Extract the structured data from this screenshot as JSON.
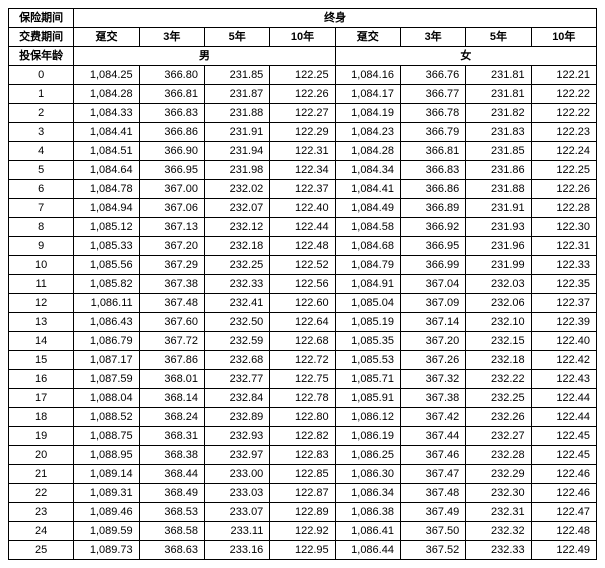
{
  "header": {
    "insurance_period_label": "保险期间",
    "lifetime_label": "终身",
    "payment_period_label": "交费期间",
    "payment_options": [
      "趸交",
      "3年",
      "5年",
      "10年"
    ],
    "insured_age_label": "投保年龄",
    "gender_male": "男",
    "gender_female": "女"
  },
  "table": {
    "type": "table",
    "background_color": "#ffffff",
    "border_color": "#000000",
    "font_size": 11,
    "ages": [
      "0",
      "1",
      "2",
      "3",
      "4",
      "5",
      "6",
      "7",
      "8",
      "9",
      "10",
      "11",
      "12",
      "13",
      "14",
      "15",
      "16",
      "17",
      "18",
      "19",
      "20",
      "21",
      "22",
      "23",
      "24",
      "25"
    ],
    "male": [
      [
        "1,084.25",
        "366.80",
        "231.85",
        "122.25"
      ],
      [
        "1,084.28",
        "366.81",
        "231.87",
        "122.26"
      ],
      [
        "1,084.33",
        "366.83",
        "231.88",
        "122.27"
      ],
      [
        "1,084.41",
        "366.86",
        "231.91",
        "122.29"
      ],
      [
        "1,084.51",
        "366.90",
        "231.94",
        "122.31"
      ],
      [
        "1,084.64",
        "366.95",
        "231.98",
        "122.34"
      ],
      [
        "1,084.78",
        "367.00",
        "232.02",
        "122.37"
      ],
      [
        "1,084.94",
        "367.06",
        "232.07",
        "122.40"
      ],
      [
        "1,085.12",
        "367.13",
        "232.12",
        "122.44"
      ],
      [
        "1,085.33",
        "367.20",
        "232.18",
        "122.48"
      ],
      [
        "1,085.56",
        "367.29",
        "232.25",
        "122.52"
      ],
      [
        "1,085.82",
        "367.38",
        "232.33",
        "122.56"
      ],
      [
        "1,086.11",
        "367.48",
        "232.41",
        "122.60"
      ],
      [
        "1,086.43",
        "367.60",
        "232.50",
        "122.64"
      ],
      [
        "1,086.79",
        "367.72",
        "232.59",
        "122.68"
      ],
      [
        "1,087.17",
        "367.86",
        "232.68",
        "122.72"
      ],
      [
        "1,087.59",
        "368.01",
        "232.77",
        "122.75"
      ],
      [
        "1,088.04",
        "368.14",
        "232.84",
        "122.78"
      ],
      [
        "1,088.52",
        "368.24",
        "232.89",
        "122.80"
      ],
      [
        "1,088.75",
        "368.31",
        "232.93",
        "122.82"
      ],
      [
        "1,088.95",
        "368.38",
        "232.97",
        "122.83"
      ],
      [
        "1,089.14",
        "368.44",
        "233.00",
        "122.85"
      ],
      [
        "1,089.31",
        "368.49",
        "233.03",
        "122.87"
      ],
      [
        "1,089.46",
        "368.53",
        "233.07",
        "122.89"
      ],
      [
        "1,089.59",
        "368.58",
        "233.11",
        "122.92"
      ],
      [
        "1,089.73",
        "368.63",
        "233.16",
        "122.95"
      ]
    ],
    "female": [
      [
        "1,084.16",
        "366.76",
        "231.81",
        "122.21"
      ],
      [
        "1,084.17",
        "366.77",
        "231.81",
        "122.22"
      ],
      [
        "1,084.19",
        "366.78",
        "231.82",
        "122.22"
      ],
      [
        "1,084.23",
        "366.79",
        "231.83",
        "122.23"
      ],
      [
        "1,084.28",
        "366.81",
        "231.85",
        "122.24"
      ],
      [
        "1,084.34",
        "366.83",
        "231.86",
        "122.25"
      ],
      [
        "1,084.41",
        "366.86",
        "231.88",
        "122.26"
      ],
      [
        "1,084.49",
        "366.89",
        "231.91",
        "122.28"
      ],
      [
        "1,084.58",
        "366.92",
        "231.93",
        "122.30"
      ],
      [
        "1,084.68",
        "366.95",
        "231.96",
        "122.31"
      ],
      [
        "1,084.79",
        "366.99",
        "231.99",
        "122.33"
      ],
      [
        "1,084.91",
        "367.04",
        "232.03",
        "122.35"
      ],
      [
        "1,085.04",
        "367.09",
        "232.06",
        "122.37"
      ],
      [
        "1,085.19",
        "367.14",
        "232.10",
        "122.39"
      ],
      [
        "1,085.35",
        "367.20",
        "232.15",
        "122.40"
      ],
      [
        "1,085.53",
        "367.26",
        "232.18",
        "122.42"
      ],
      [
        "1,085.71",
        "367.32",
        "232.22",
        "122.43"
      ],
      [
        "1,085.91",
        "367.38",
        "232.25",
        "122.44"
      ],
      [
        "1,086.12",
        "367.42",
        "232.26",
        "122.44"
      ],
      [
        "1,086.19",
        "367.44",
        "232.27",
        "122.45"
      ],
      [
        "1,086.25",
        "367.46",
        "232.28",
        "122.45"
      ],
      [
        "1,086.30",
        "367.47",
        "232.29",
        "122.46"
      ],
      [
        "1,086.34",
        "367.48",
        "232.30",
        "122.46"
      ],
      [
        "1,086.38",
        "367.49",
        "232.31",
        "122.47"
      ],
      [
        "1,086.41",
        "367.50",
        "232.32",
        "122.48"
      ],
      [
        "1,086.44",
        "367.52",
        "232.33",
        "122.49"
      ]
    ]
  }
}
